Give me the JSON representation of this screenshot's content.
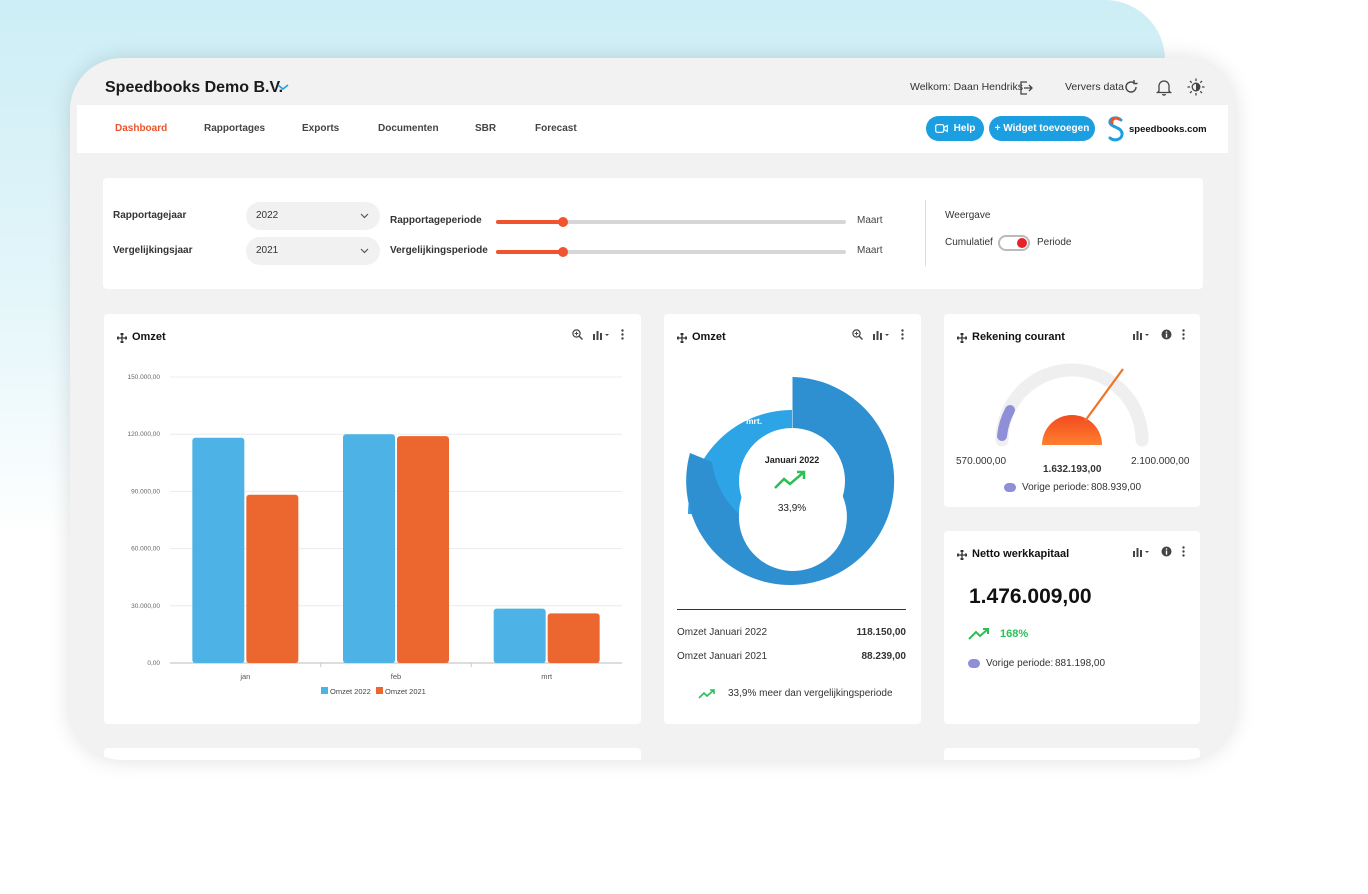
{
  "header": {
    "company": "Speedbooks Demo B.V.",
    "welcome": "Welkom: Daan Hendriks",
    "refresh_label": "Ververs data"
  },
  "nav": {
    "items": [
      {
        "label": "Dashboard",
        "active": true
      },
      {
        "label": "Rapportages"
      },
      {
        "label": "Exports"
      },
      {
        "label": "Documenten"
      },
      {
        "label": "SBR"
      },
      {
        "label": "Forecast"
      }
    ],
    "help_label": "Help",
    "add_widget_label": "+ Widget toevoegen",
    "brand": "speedbooks.com"
  },
  "filters": {
    "report_year_label": "Rapportagejaar",
    "report_year_value": "2022",
    "compare_year_label": "Vergelijkingsjaar",
    "compare_year_value": "2021",
    "report_period_label": "Rapportageperiode",
    "report_period_value": "Maart",
    "report_period_level": 0.19,
    "compare_period_label": "Vergelijkingsperiode",
    "compare_period_value": "Maart",
    "compare_period_level": 0.19,
    "view_label": "Weergave",
    "view_left": "Cumulatief",
    "view_right": "Periode"
  },
  "widgets": {
    "bar": {
      "title": "Omzet",
      "legend": [
        "Omzet 2022",
        "Omzet 2021"
      ]
    },
    "donut": {
      "title": "Omzet",
      "center_label": "Januari 2022",
      "center_value": "33,9%",
      "slice_labels": [
        "mrt.",
        "jan."
      ],
      "rows": [
        {
          "label": "Omzet Januari 2022",
          "value": "118.150,00"
        },
        {
          "label": "Omzet Januari 2021",
          "value": "88.239,00"
        }
      ],
      "footer": "33,9% meer dan vergelijkingsperiode"
    },
    "gauge": {
      "title": "Rekening courant",
      "min": "570.000,00",
      "max": "2.100.000,00",
      "value": "1.632.193,00",
      "prev_label": "Vorige periode:",
      "prev_value": "808.939,00"
    },
    "working_capital": {
      "title": "Netto werkkapitaal",
      "value": "1.476.009,00",
      "change": "168%",
      "prev_label": "Vorige periode:",
      "prev_value": "881.198,00"
    }
  },
  "colors": {
    "accent": "#e8552d",
    "blue": "#1b9fe0",
    "bar_2022": "#4db3e6",
    "bar_2021": "#ec6730",
    "green": "#2bbf55",
    "purple": "#8f8fd8"
  },
  "chart_data": {
    "type": "bar",
    "categories": [
      "jan",
      "feb",
      "mrt"
    ],
    "series": [
      {
        "name": "Omzet 2022",
        "values": [
          118150,
          120000,
          28500
        ]
      },
      {
        "name": "Omzet 2021",
        "values": [
          88239,
          119000,
          26000
        ]
      }
    ],
    "y_ticks": [
      "0,00",
      "30.000,00",
      "60.000,00",
      "90.000,00",
      "120.000,00",
      "150.000,00"
    ],
    "ylim": [
      0,
      150000
    ],
    "grid": true,
    "legend_position": "bottom"
  }
}
